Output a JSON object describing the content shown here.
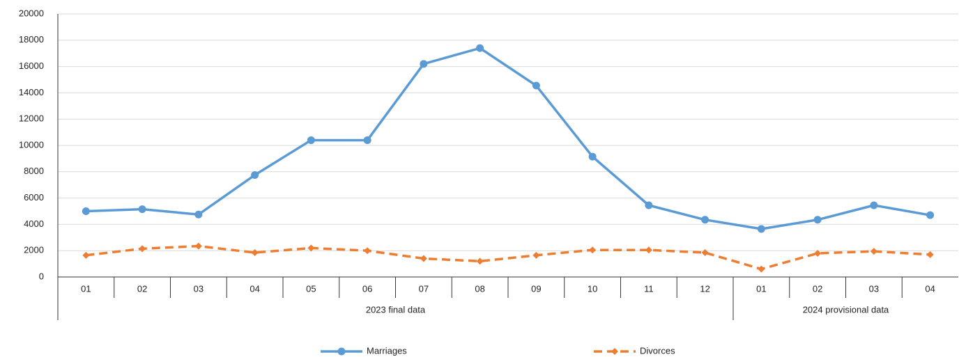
{
  "chart_data": {
    "type": "line",
    "groups": [
      {
        "label": "2023 final data",
        "categories": [
          "01",
          "02",
          "03",
          "04",
          "05",
          "06",
          "07",
          "08",
          "09",
          "10",
          "11",
          "12"
        ]
      },
      {
        "label": "2024 provisional data",
        "categories": [
          "01",
          "02",
          "03",
          "04"
        ]
      }
    ],
    "series": [
      {
        "name": "Marriages",
        "color": "#5b9bd5",
        "dash": false,
        "marker": "circle",
        "values": [
          5000,
          5150,
          4750,
          7750,
          10400,
          10400,
          16200,
          17400,
          14550,
          9150,
          5450,
          4350,
          3650,
          4350,
          5450,
          4700
        ]
      },
      {
        "name": "Divorces",
        "color": "#ed7d31",
        "dash": true,
        "marker": "diamond",
        "values": [
          1650,
          2150,
          2350,
          1850,
          2200,
          2000,
          1400,
          1200,
          1650,
          2050,
          2050,
          1850,
          600,
          1800,
          1950,
          1700
        ]
      }
    ],
    "ylim": [
      0,
      20000
    ],
    "yticks": [
      0,
      2000,
      4000,
      6000,
      8000,
      10000,
      12000,
      14000,
      16000,
      18000,
      20000
    ],
    "grid": true,
    "legend": "bottom"
  }
}
